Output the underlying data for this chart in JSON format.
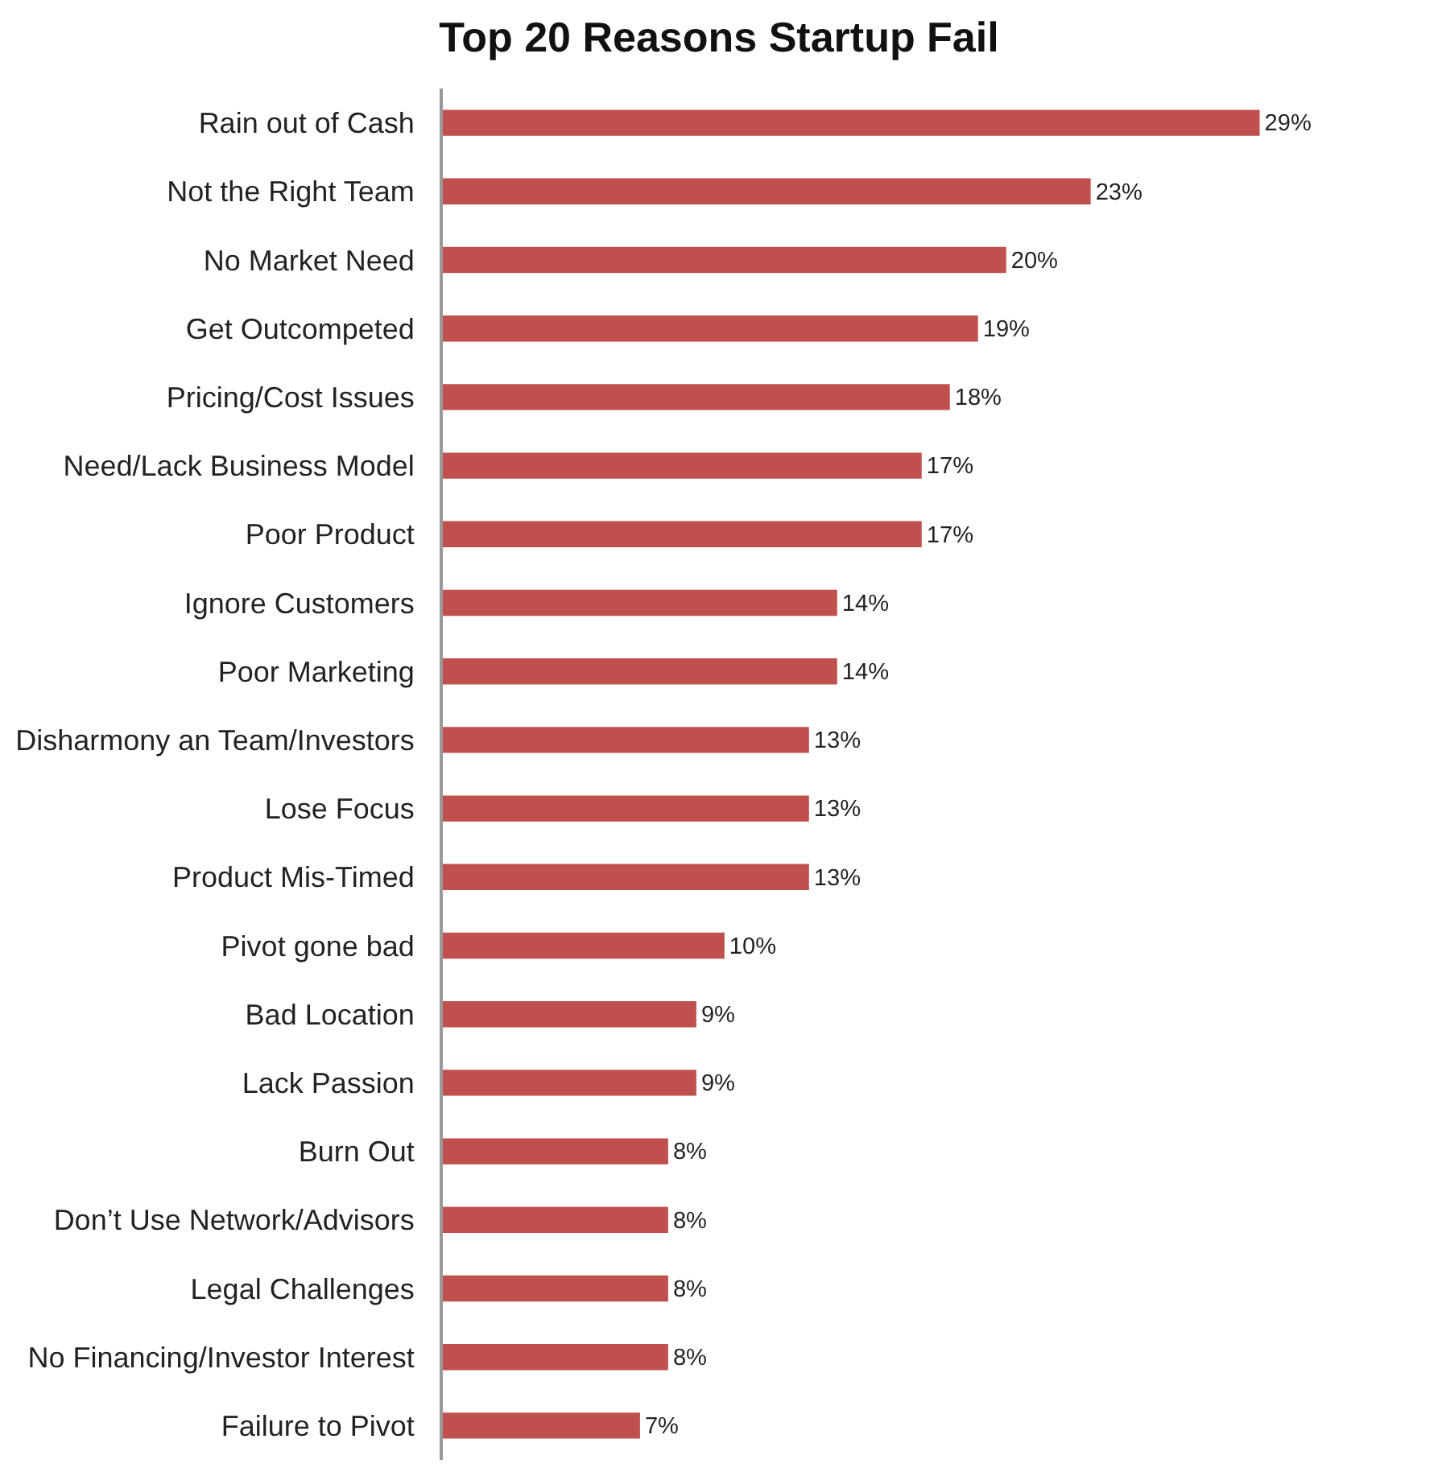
{
  "chart_data": {
    "type": "bar",
    "orientation": "horizontal",
    "title": "Top 20 Reasons Startup Fail",
    "categories": [
      "Rain out of Cash",
      "Not the Right Team",
      "No Market Need",
      "Get Outcompeted",
      "Pricing/Cost Issues",
      "Need/Lack Business Model",
      "Poor Product",
      "Ignore Customers",
      "Poor Marketing",
      "Disharmony an Team/Investors",
      "Lose Focus",
      "Product Mis-Timed",
      "Pivot gone bad",
      "Bad Location",
      "Lack Passion",
      "Burn Out",
      "Don’t Use Network/Advisors",
      "Legal Challenges",
      "No Financing/Investor Interest",
      "Failure to Pivot"
    ],
    "values": [
      29,
      23,
      20,
      19,
      18,
      17,
      17,
      14,
      14,
      13,
      13,
      13,
      10,
      9,
      9,
      8,
      8,
      8,
      8,
      7
    ],
    "value_labels": [
      "29%",
      "23%",
      "20%",
      "19%",
      "18%",
      "17%",
      "17%",
      "14%",
      "14%",
      "13%",
      "13%",
      "13%",
      "10%",
      "9%",
      "9%",
      "8%",
      "8%",
      "8%",
      "8%",
      "7%"
    ],
    "color": "#c0504d",
    "tick_labels": "y"
  }
}
